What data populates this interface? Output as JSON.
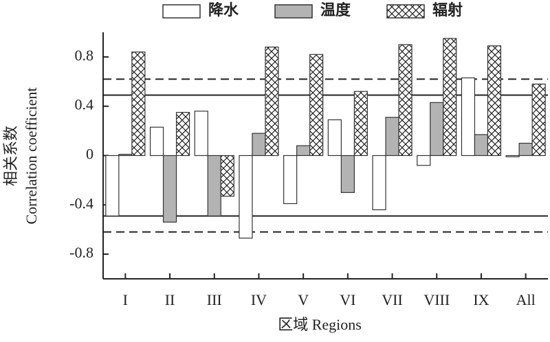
{
  "chart_data": {
    "type": "bar",
    "xlabel": "区域 Regions",
    "ylabel": [
      "相关系数",
      "Correlation coefficient"
    ],
    "categories": [
      "I",
      "II",
      "III",
      "IV",
      "V",
      "VI",
      "VII",
      "VIII",
      "IX",
      "All"
    ],
    "series": [
      {
        "name": "降水",
        "color": "#ffffff",
        "values": [
          -0.49,
          0.23,
          0.36,
          -0.67,
          -0.39,
          0.29,
          -0.44,
          -0.08,
          0.63,
          -0.01
        ]
      },
      {
        "name": "温度",
        "color": "#b3b3b3",
        "values": [
          0.01,
          -0.54,
          -0.49,
          0.18,
          0.08,
          -0.3,
          0.31,
          0.43,
          0.17,
          0.1
        ]
      },
      {
        "name": "辐射",
        "color": "#ffffff",
        "pattern": "crosshatch",
        "values": [
          0.84,
          0.35,
          -0.33,
          0.88,
          0.82,
          0.52,
          0.9,
          0.95,
          0.89,
          0.58
        ]
      }
    ],
    "ylim": [
      -1,
      1
    ],
    "yticks": [
      -0.8,
      -0.4,
      0,
      0.4,
      0.8
    ],
    "reference_lines": [
      {
        "value": 0.49,
        "style": "solid"
      },
      {
        "value": -0.49,
        "style": "solid"
      },
      {
        "value": 0.62,
        "style": "dashed"
      },
      {
        "value": -0.62,
        "style": "dashed"
      }
    ],
    "legend": "top"
  }
}
